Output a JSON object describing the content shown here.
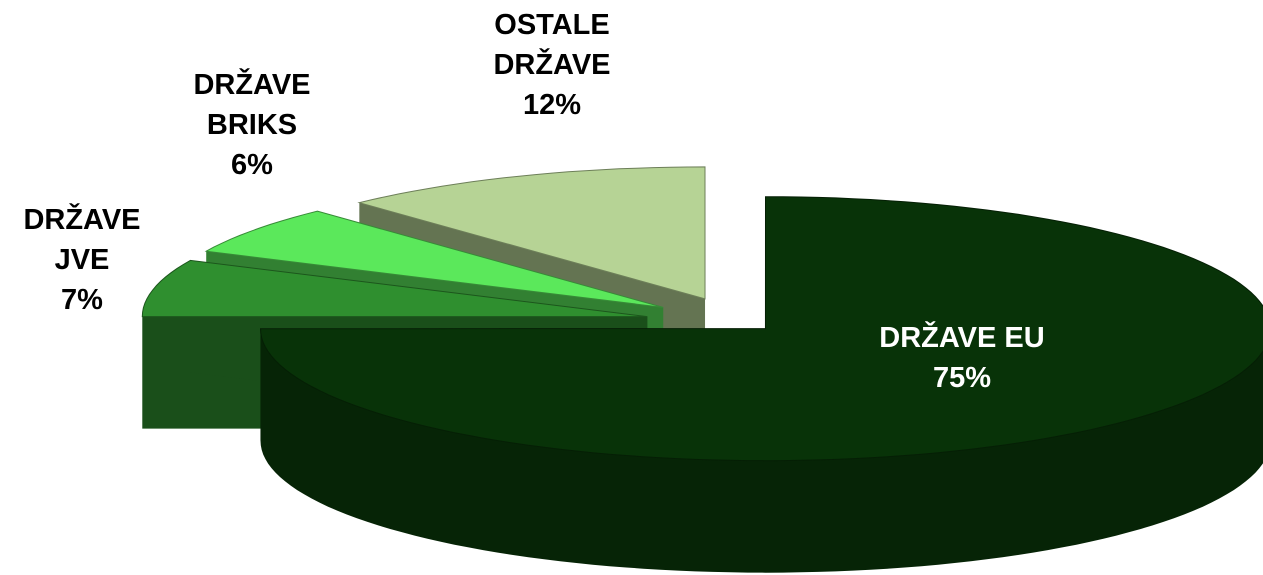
{
  "chart_data": {
    "type": "pie",
    "categories": [
      "DRŽAVE EU",
      "DRŽAVE JVE",
      "DRŽAVE BRIKS",
      "OSTALE DRŽAVE"
    ],
    "values": [
      75,
      7,
      6,
      12
    ],
    "value_labels": [
      "75%",
      "7%",
      "6%",
      "12%"
    ],
    "colors": [
      "#083308",
      "#2f8f2f",
      "#5be85b",
      "#b6d395"
    ]
  }
}
